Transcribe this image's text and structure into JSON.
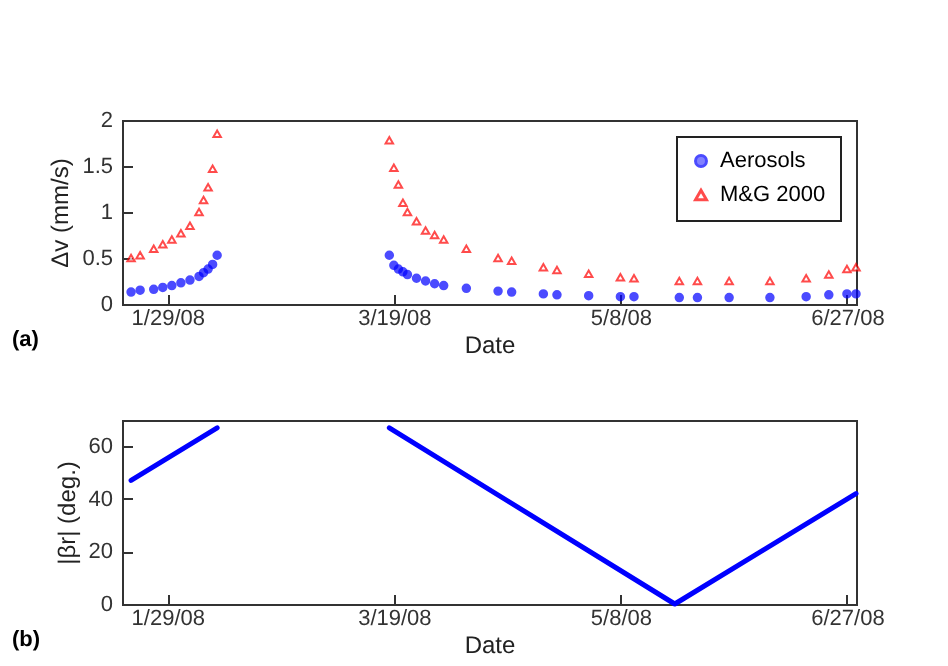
{
  "chart_data": [
    {
      "type": "scatter",
      "ylabel": "Δv (mm/s)",
      "xlabel": "Date",
      "annotations": [
        "(a)"
      ],
      "legend": "top right",
      "grid": false,
      "x": [
        "2008-01-21",
        "2008-01-23",
        "2008-01-26",
        "2008-01-28",
        "2008-01-30",
        "2008-02-01",
        "2008-02-03",
        "2008-02-05",
        "2008-02-06",
        "2008-02-07",
        "2008-02-08",
        "2008-02-09",
        "2008-03-18",
        "2008-03-19",
        "2008-03-20",
        "2008-03-21",
        "2008-03-22",
        "2008-03-24",
        "2008-03-26",
        "2008-03-28",
        "2008-03-30",
        "2008-04-04",
        "2008-04-11",
        "2008-04-14",
        "2008-04-21",
        "2008-04-24",
        "2008-05-01",
        "2008-05-08",
        "2008-05-11",
        "2008-05-21",
        "2008-05-25",
        "2008-06-01",
        "2008-06-10",
        "2008-06-18",
        "2008-06-23",
        "2008-06-27",
        "2008-06-29"
      ],
      "xlim": [
        "2008-01-19",
        "2008-06-29"
      ],
      "xticks": [
        {
          "value": "2008-01-29",
          "label": "1/29/08"
        },
        {
          "value": "2008-03-19",
          "label": "3/19/08"
        },
        {
          "value": "2008-05-08",
          "label": "5/8/08"
        },
        {
          "value": "2008-06-27",
          "label": "6/27/08"
        }
      ],
      "ylim": [
        0,
        2
      ],
      "yticks": [
        0,
        0.5,
        1,
        1.5,
        2
      ],
      "series": [
        {
          "name": "Aerosols",
          "color": "#0000ff",
          "marker": "circle",
          "values": [
            0.13,
            0.15,
            0.16,
            0.18,
            0.2,
            0.23,
            0.26,
            0.3,
            0.34,
            0.38,
            0.43,
            0.53,
            0.53,
            0.42,
            0.38,
            0.35,
            0.32,
            0.28,
            0.25,
            0.22,
            0.2,
            0.17,
            0.14,
            0.13,
            0.11,
            0.1,
            0.09,
            0.08,
            0.08,
            0.07,
            0.07,
            0.07,
            0.07,
            0.08,
            0.1,
            0.11,
            0.11
          ]
        },
        {
          "name": "M&G 2000",
          "color": "#ff0000",
          "marker": "triangle",
          "values": [
            0.5,
            0.53,
            0.6,
            0.65,
            0.7,
            0.77,
            0.85,
            1.0,
            1.13,
            1.27,
            1.47,
            1.85,
            1.78,
            1.48,
            1.3,
            1.1,
            1.0,
            0.9,
            0.8,
            0.75,
            0.7,
            0.6,
            0.5,
            0.47,
            0.4,
            0.37,
            0.33,
            0.29,
            0.28,
            0.25,
            0.25,
            0.25,
            0.25,
            0.28,
            0.32,
            0.38,
            0.4
          ]
        }
      ]
    },
    {
      "type": "line",
      "ylabel": "|βr| (deg.)",
      "xlabel": "Date",
      "annotations": [
        "(b)"
      ],
      "grid": false,
      "marker": "none",
      "line_style": "solid",
      "x": [
        "2008-01-21",
        "2008-02-09",
        "2008-02-25",
        "2008-03-18",
        "2008-05-20",
        "2008-06-29"
      ],
      "xlim": [
        "2008-01-19",
        "2008-06-29"
      ],
      "xticks": [
        {
          "value": "2008-01-29",
          "label": "1/29/08"
        },
        {
          "value": "2008-03-19",
          "label": "3/19/08"
        },
        {
          "value": "2008-05-08",
          "label": "5/8/08"
        },
        {
          "value": "2008-06-27",
          "label": "6/27/08"
        }
      ],
      "ylim": [
        0,
        70
      ],
      "yticks": [
        0,
        20,
        40,
        60
      ],
      "series": [
        {
          "color": "#0000ff",
          "values": [
            47,
            67,
            null,
            67,
            0,
            42
          ]
        }
      ]
    }
  ]
}
